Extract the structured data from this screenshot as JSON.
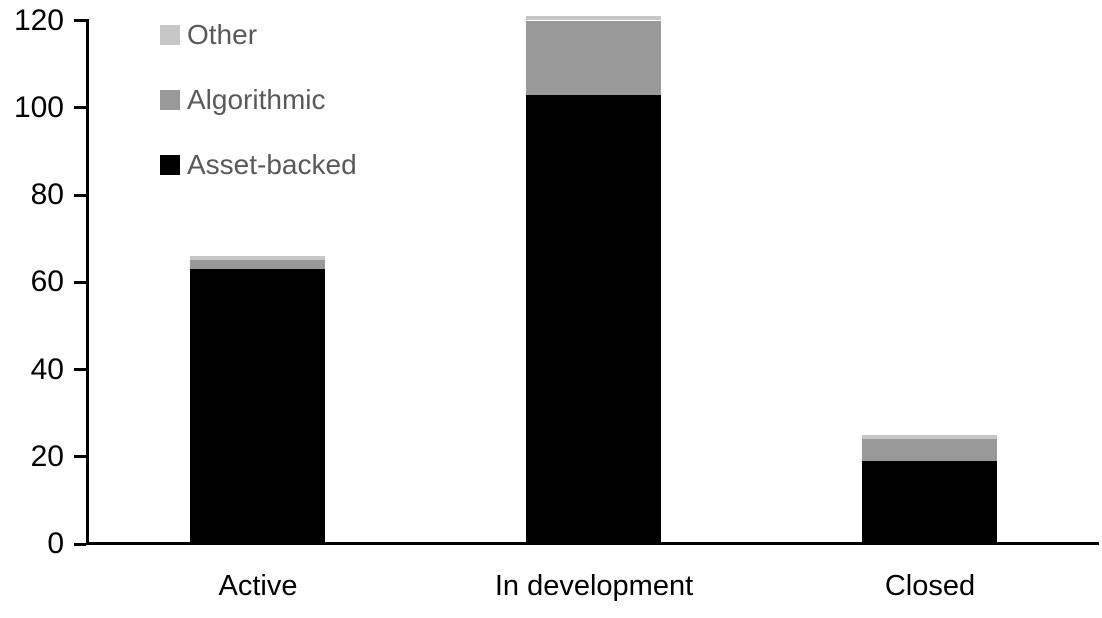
{
  "chart_data": {
    "type": "bar",
    "stacked": true,
    "title": "",
    "xlabel": "",
    "ylabel": "",
    "categories": [
      "Active",
      "In development",
      "Closed"
    ],
    "series": [
      {
        "name": "Asset-backed",
        "color": "#000000",
        "values": [
          63,
          103,
          19
        ]
      },
      {
        "name": "Algorithmic",
        "color": "#999999",
        "values": [
          2,
          17,
          5
        ]
      },
      {
        "name": "Other",
        "color": "#c6c6c6",
        "values": [
          1,
          1,
          1
        ]
      }
    ],
    "stack_order_bottom_to_top": [
      "Asset-backed",
      "Algorithmic",
      "Other"
    ],
    "totals": [
      66,
      121,
      25
    ],
    "ylim": [
      0,
      120
    ],
    "yticks": [
      0,
      20,
      40,
      60,
      80,
      100,
      120
    ],
    "grid": false,
    "legend_position": "top-left",
    "legend_order_top_to_bottom": [
      "Other",
      "Algorithmic",
      "Asset-backed"
    ]
  },
  "colors": {
    "background": "#ffffff",
    "axis": "#000000",
    "tick_label_text": "#000000",
    "category_label_text": "#000000",
    "legend_text": "#595959",
    "asset_backed": "#000000",
    "algorithmic": "#999999",
    "other": "#c6c6c6"
  },
  "layout_values": {
    "y_axis_tick_count": "7",
    "bar_count": "3"
  }
}
